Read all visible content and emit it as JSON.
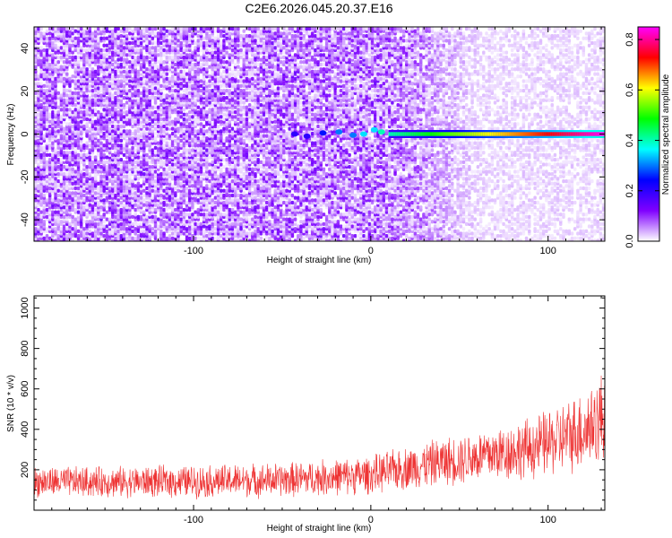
{
  "figure_title": "C2E6.2026.045.20.37.E16",
  "chart_data": [
    {
      "type": "heatmap",
      "panel": "top",
      "xlabel": "Height of straight line (km)",
      "ylabel": "Frequency (Hz)",
      "xlim": [
        -190,
        132
      ],
      "ylim": [
        -50,
        50
      ],
      "xticks": [
        -100,
        0,
        100
      ],
      "yticks": [
        -40,
        -20,
        0,
        20,
        40
      ],
      "colorbar": {
        "label": "Normalized spectral amplitude",
        "range": [
          0.0,
          0.85
        ],
        "ticks": [
          0.0,
          0.2,
          0.4,
          0.6,
          0.8
        ],
        "colormap": [
          "#ffffff",
          "#8000ff",
          "#0000ff",
          "#00ffff",
          "#00ff00",
          "#ffff00",
          "#ff0000",
          "#ff00ff"
        ]
      },
      "features": {
        "noise_amplitude_left": 0.08,
        "noise_amplitude_right": 0.02,
        "noise_transition_x": [
          10,
          60
        ],
        "tone_frequency_hz": 0,
        "tone_start_x": 10,
        "tone_end_x": 132,
        "tone_amplitude_start": 0.4,
        "tone_amplitude_end": 0.85,
        "wander_points": [
          {
            "x": -43,
            "y": 0,
            "a": 0.2
          },
          {
            "x": -36,
            "y": -1,
            "a": 0.2
          },
          {
            "x": -27,
            "y": 0.5,
            "a": 0.25
          },
          {
            "x": -18,
            "y": 1,
            "a": 0.3
          },
          {
            "x": -10,
            "y": -0.5,
            "a": 0.3
          },
          {
            "x": -4,
            "y": 0,
            "a": 0.35
          },
          {
            "x": 2,
            "y": 2,
            "a": 0.35
          },
          {
            "x": 6,
            "y": 1,
            "a": 0.4
          }
        ]
      }
    },
    {
      "type": "line",
      "panel": "bottom",
      "series": [
        {
          "color": "#ee3333",
          "envelope": {
            "x": [
              -190,
              -150,
              -100,
              -50,
              0,
              30,
              60,
              90,
              110,
              125,
              132
            ],
            "mean": [
              140,
              140,
              142,
              150,
              175,
              225,
              265,
              305,
              360,
              420,
              470
            ],
            "spread": [
              85,
              85,
              90,
              95,
              105,
              125,
              145,
              170,
              200,
              240,
              270
            ]
          }
        }
      ],
      "xlabel": "Height of straight line (km)",
      "ylabel": "SNR (10 * v/v)",
      "xlim": [
        -190,
        132
      ],
      "ylim": [
        0,
        1060
      ],
      "xticks": [
        -100,
        0,
        100
      ],
      "yticks": [
        200,
        400,
        600,
        800,
        1000
      ]
    }
  ]
}
